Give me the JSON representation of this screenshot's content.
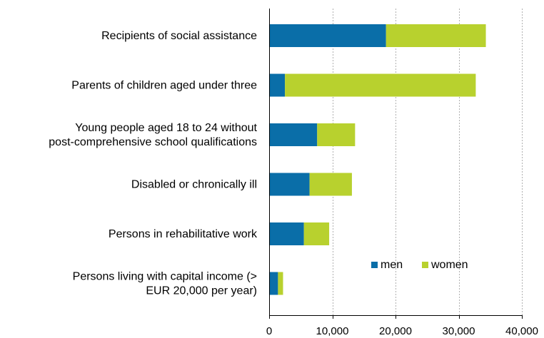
{
  "chart_data": {
    "type": "bar",
    "orientation": "horizontal",
    "stacked": true,
    "categories": [
      [
        "Recipients of social assistance"
      ],
      [
        "Parents of children aged under three"
      ],
      [
        "Young people aged 18 to 24 without",
        "post-comprehensive school qualifications"
      ],
      [
        "Disabled or chronically ill"
      ],
      [
        "Persons in rehabilitative work"
      ],
      [
        "Persons living with capital income (>",
        "EUR 20,000 per year)"
      ]
    ],
    "series": [
      {
        "name": "men",
        "color": "#0a6ea8",
        "values": [
          18500,
          2500,
          7600,
          6400,
          5500,
          1400
        ]
      },
      {
        "name": "women",
        "color": "#b8d12e",
        "values": [
          15800,
          30200,
          6000,
          6700,
          4000,
          800
        ]
      }
    ],
    "xlim": [
      0,
      40000
    ],
    "xticks": [
      0,
      10000,
      20000,
      30000,
      40000
    ],
    "xtick_labels": [
      "0",
      "10,000",
      "20,000",
      "30,000",
      "40,000"
    ],
    "grid": "vertical dashed",
    "legend_position": "lower-right inside plot"
  }
}
